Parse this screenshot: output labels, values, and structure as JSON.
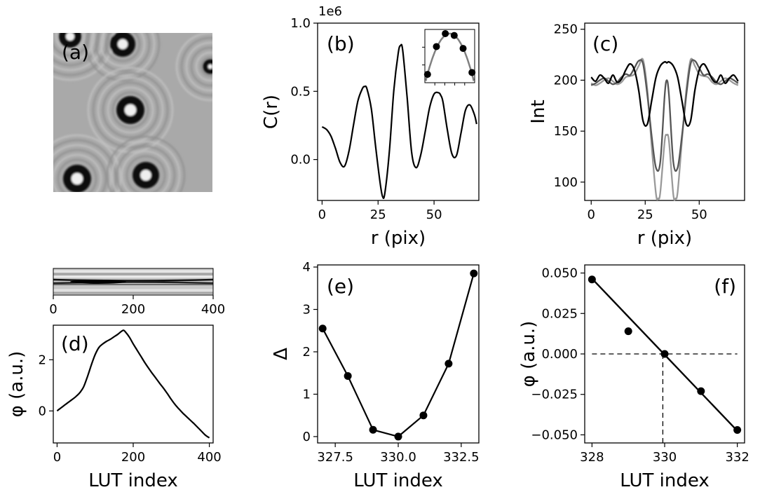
{
  "figure": {
    "background": "#ffffff",
    "line_color": "#000000"
  },
  "chart_data": [
    {
      "id": "a",
      "panel_label": "(a)",
      "type": "image",
      "description_free": true
    },
    {
      "id": "b",
      "panel_label": "(b)",
      "type": "line",
      "xlabel": "r (pix)",
      "ylabel": "C(r)",
      "offset_text": "1e6",
      "xlim": [
        -2,
        70
      ],
      "ylim": [
        -0.3,
        1.0
      ],
      "xticks": [
        0,
        25,
        50
      ],
      "yticks": [
        0.0,
        0.5,
        1.0
      ],
      "ytick_labels": [
        "0.0",
        "0.5",
        "1.0"
      ],
      "series": [
        {
          "color": "#000000",
          "x": [
            0,
            2,
            4,
            6,
            8,
            10,
            12,
            14,
            16,
            18,
            19,
            20,
            22,
            24,
            26,
            27,
            28,
            30,
            32,
            34,
            35,
            36,
            38,
            40,
            42,
            44,
            46,
            48,
            50,
            52,
            53,
            54,
            56,
            58,
            60,
            62,
            64,
            66,
            68,
            69
          ],
          "y": [
            0.24,
            0.22,
            0.17,
            0.08,
            -0.02,
            -0.05,
            0.06,
            0.25,
            0.43,
            0.52,
            0.535,
            0.52,
            0.37,
            0.08,
            -0.18,
            -0.27,
            -0.25,
            0.05,
            0.5,
            0.78,
            0.835,
            0.8,
            0.45,
            0.05,
            -0.06,
            0.03,
            0.2,
            0.38,
            0.48,
            0.49,
            0.47,
            0.42,
            0.21,
            0.04,
            0.03,
            0.19,
            0.36,
            0.4,
            0.33,
            0.26
          ]
        }
      ],
      "inset": {
        "type": "line+scatter",
        "xlim": [
          -0.3,
          5.3
        ],
        "ylim": [
          0,
          1.15
        ],
        "xtick_count": 4,
        "ytick_count": 2,
        "points": {
          "x": [
            0,
            1,
            2,
            3,
            4,
            5
          ],
          "y": [
            0.18,
            0.78,
            1.06,
            1.02,
            0.74,
            0.22
          ]
        },
        "curve_color": "#808080"
      }
    },
    {
      "id": "c",
      "panel_label": "(c)",
      "type": "line",
      "xlabel": "r (pix)",
      "ylabel": "Int",
      "xlim": [
        -3,
        71
      ],
      "ylim": [
        82,
        256
      ],
      "xticks": [
        0,
        25,
        50
      ],
      "yticks": [
        100,
        150,
        200,
        250
      ],
      "series": [
        {
          "color": "#999999",
          "x": [
            0,
            2,
            4,
            6,
            8,
            10,
            12,
            14,
            16,
            18,
            20,
            22,
            24,
            26,
            28,
            30,
            31,
            32,
            34,
            35,
            36,
            38,
            39,
            40,
            42,
            44,
            46,
            48,
            50,
            52,
            54,
            56,
            58,
            60,
            62,
            64,
            66,
            68
          ],
          "y": [
            197,
            195,
            197,
            200,
            202,
            199,
            196,
            198,
            203,
            204,
            206,
            214,
            220,
            190,
            135,
            88,
            84,
            90,
            140,
            146,
            140,
            88,
            84,
            90,
            140,
            190,
            220,
            214,
            206,
            204,
            203,
            198,
            196,
            199,
            202,
            200,
            197,
            195
          ]
        },
        {
          "color": "#555555",
          "x": [
            0,
            2,
            4,
            6,
            8,
            10,
            12,
            14,
            16,
            18,
            20,
            22,
            24,
            26,
            28,
            30,
            32,
            34,
            35,
            36,
            38,
            40,
            42,
            44,
            46,
            48,
            50,
            52,
            54,
            56,
            58,
            60,
            62,
            64,
            66,
            68
          ],
          "y": [
            195,
            197,
            200,
            202,
            199,
            196,
            198,
            203,
            206,
            205,
            212,
            219,
            216,
            185,
            145,
            114,
            120,
            185,
            200,
            185,
            120,
            114,
            145,
            185,
            216,
            219,
            212,
            205,
            206,
            203,
            198,
            196,
            199,
            202,
            200,
            197
          ]
        },
        {
          "color": "#000000",
          "x": [
            0,
            2,
            4,
            6,
            8,
            10,
            12,
            14,
            16,
            18,
            20,
            22,
            24,
            26,
            28,
            30,
            32,
            34,
            35,
            36,
            38,
            40,
            42,
            44,
            46,
            48,
            50,
            52,
            54,
            56,
            58,
            60,
            62,
            64,
            66,
            68
          ],
          "y": [
            203,
            199,
            205,
            202,
            197,
            205,
            198,
            201,
            210,
            216,
            210,
            190,
            160,
            157,
            180,
            203,
            214,
            218,
            217,
            218,
            214,
            203,
            180,
            157,
            160,
            190,
            210,
            216,
            210,
            201,
            198,
            205,
            197,
            202,
            205,
            199
          ]
        }
      ]
    },
    {
      "id": "d",
      "panel_label": "(d)",
      "type": "line",
      "xlabel": "LUT index",
      "ylabel": "φ (a.u.)",
      "xlim": [
        -10,
        410
      ],
      "ylim": [
        -1.25,
        3.35
      ],
      "xticks": [
        0,
        200,
        400
      ],
      "yticks": [
        0,
        2
      ],
      "series": [
        {
          "color": "#000000",
          "x": [
            0,
            10,
            20,
            30,
            40,
            50,
            60,
            70,
            80,
            90,
            100,
            110,
            120,
            130,
            140,
            150,
            160,
            170,
            175,
            180,
            190,
            200,
            210,
            220,
            230,
            240,
            250,
            260,
            270,
            280,
            290,
            300,
            310,
            320,
            330,
            340,
            350,
            360,
            370,
            380,
            390,
            400
          ],
          "y": [
            0.0,
            0.12,
            0.23,
            0.34,
            0.45,
            0.57,
            0.72,
            0.95,
            1.35,
            1.8,
            2.2,
            2.48,
            2.62,
            2.72,
            2.8,
            2.9,
            3.0,
            3.12,
            3.15,
            3.08,
            2.88,
            2.62,
            2.38,
            2.14,
            1.9,
            1.68,
            1.47,
            1.27,
            1.07,
            0.88,
            0.67,
            0.45,
            0.25,
            0.08,
            -0.08,
            -0.22,
            -0.36,
            -0.5,
            -0.65,
            -0.8,
            -0.95,
            -1.05
          ]
        }
      ],
      "strip": {
        "type": "heatmap-strip",
        "xlim": [
          0,
          400
        ],
        "xticks": [
          0,
          200,
          400
        ]
      }
    },
    {
      "id": "e",
      "panel_label": "(e)",
      "type": "line+scatter",
      "xlabel": "LUT index",
      "ylabel": "Δ",
      "xlim": [
        326.8,
        333.2
      ],
      "ylim": [
        -0.15,
        4.05
      ],
      "xticks": [
        327.5,
        330.0,
        332.5
      ],
      "xtick_labels": [
        "327.5",
        "330.0",
        "332.5"
      ],
      "yticks": [
        0,
        1,
        2,
        3,
        4
      ],
      "series": [
        {
          "color": "#000000",
          "x": [
            327,
            328,
            329,
            330,
            331,
            332,
            333
          ],
          "y": [
            2.55,
            1.43,
            0.16,
            0.0,
            0.5,
            1.72,
            3.85
          ]
        }
      ]
    },
    {
      "id": "f",
      "panel_label": "(f)",
      "type": "scatter+fit",
      "xlabel": "LUT index",
      "ylabel": "φ (a.u.)",
      "xlim": [
        327.8,
        332.2
      ],
      "ylim": [
        -0.055,
        0.055
      ],
      "xticks": [
        328,
        330,
        332
      ],
      "yticks": [
        0.05,
        0.025,
        0.0,
        -0.025,
        -0.05
      ],
      "ytick_labels": [
        "0.050",
        "0.025",
        "0.000",
        "−0.025",
        "−0.050"
      ],
      "points": {
        "x": [
          328,
          329,
          330,
          331,
          332
        ],
        "y": [
          0.046,
          0.014,
          0.0,
          -0.023,
          -0.047
        ]
      },
      "fit": {
        "x": [
          328,
          332
        ],
        "y": [
          0.0465,
          -0.0475
        ]
      },
      "zero_crossing_x": 329.95
    }
  ]
}
